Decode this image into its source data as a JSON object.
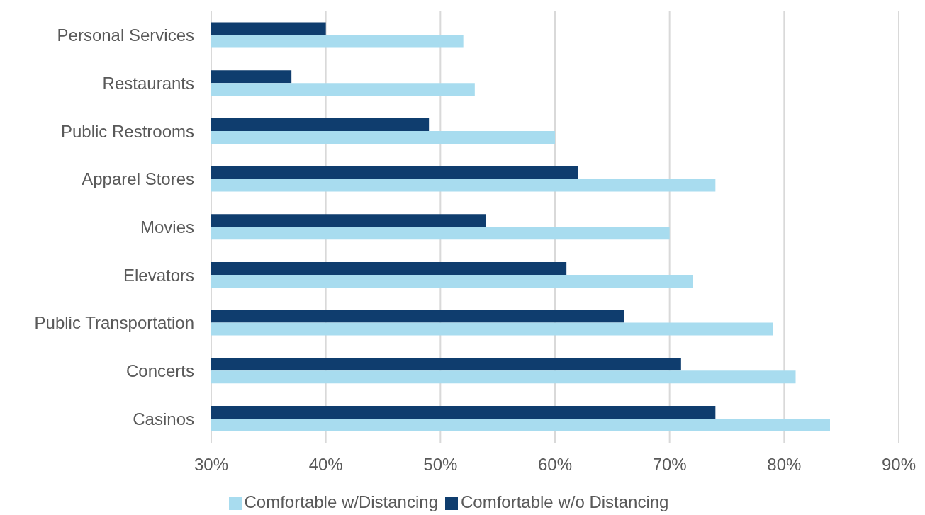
{
  "chart_data": {
    "type": "bar",
    "orientation": "horizontal",
    "categories": [
      "Personal Services",
      "Restaurants",
      "Public Restrooms",
      "Apparel Stores",
      "Movies",
      "Elevators",
      "Public Transportation",
      "Concerts",
      "Casinos"
    ],
    "series": [
      {
        "name": "Comfortable w/o Distancing",
        "color": "#0f3d6e",
        "values": [
          40,
          37,
          49,
          62,
          54,
          61,
          66,
          71,
          74
        ]
      },
      {
        "name": "Comfortable w/Distancing",
        "color": "#a8dcef",
        "values": [
          52,
          53,
          60,
          74,
          70,
          72,
          79,
          81,
          84
        ]
      }
    ],
    "xlim": [
      30,
      90
    ],
    "xticks": [
      {
        "value": 30,
        "label": "30%"
      },
      {
        "value": 40,
        "label": "40%"
      },
      {
        "value": 50,
        "label": "50%"
      },
      {
        "value": 60,
        "label": "60%"
      },
      {
        "value": 70,
        "label": "70%"
      },
      {
        "value": 80,
        "label": "80%"
      },
      {
        "value": 90,
        "label": "90%"
      }
    ],
    "grid": "x",
    "legend": "bottom"
  }
}
